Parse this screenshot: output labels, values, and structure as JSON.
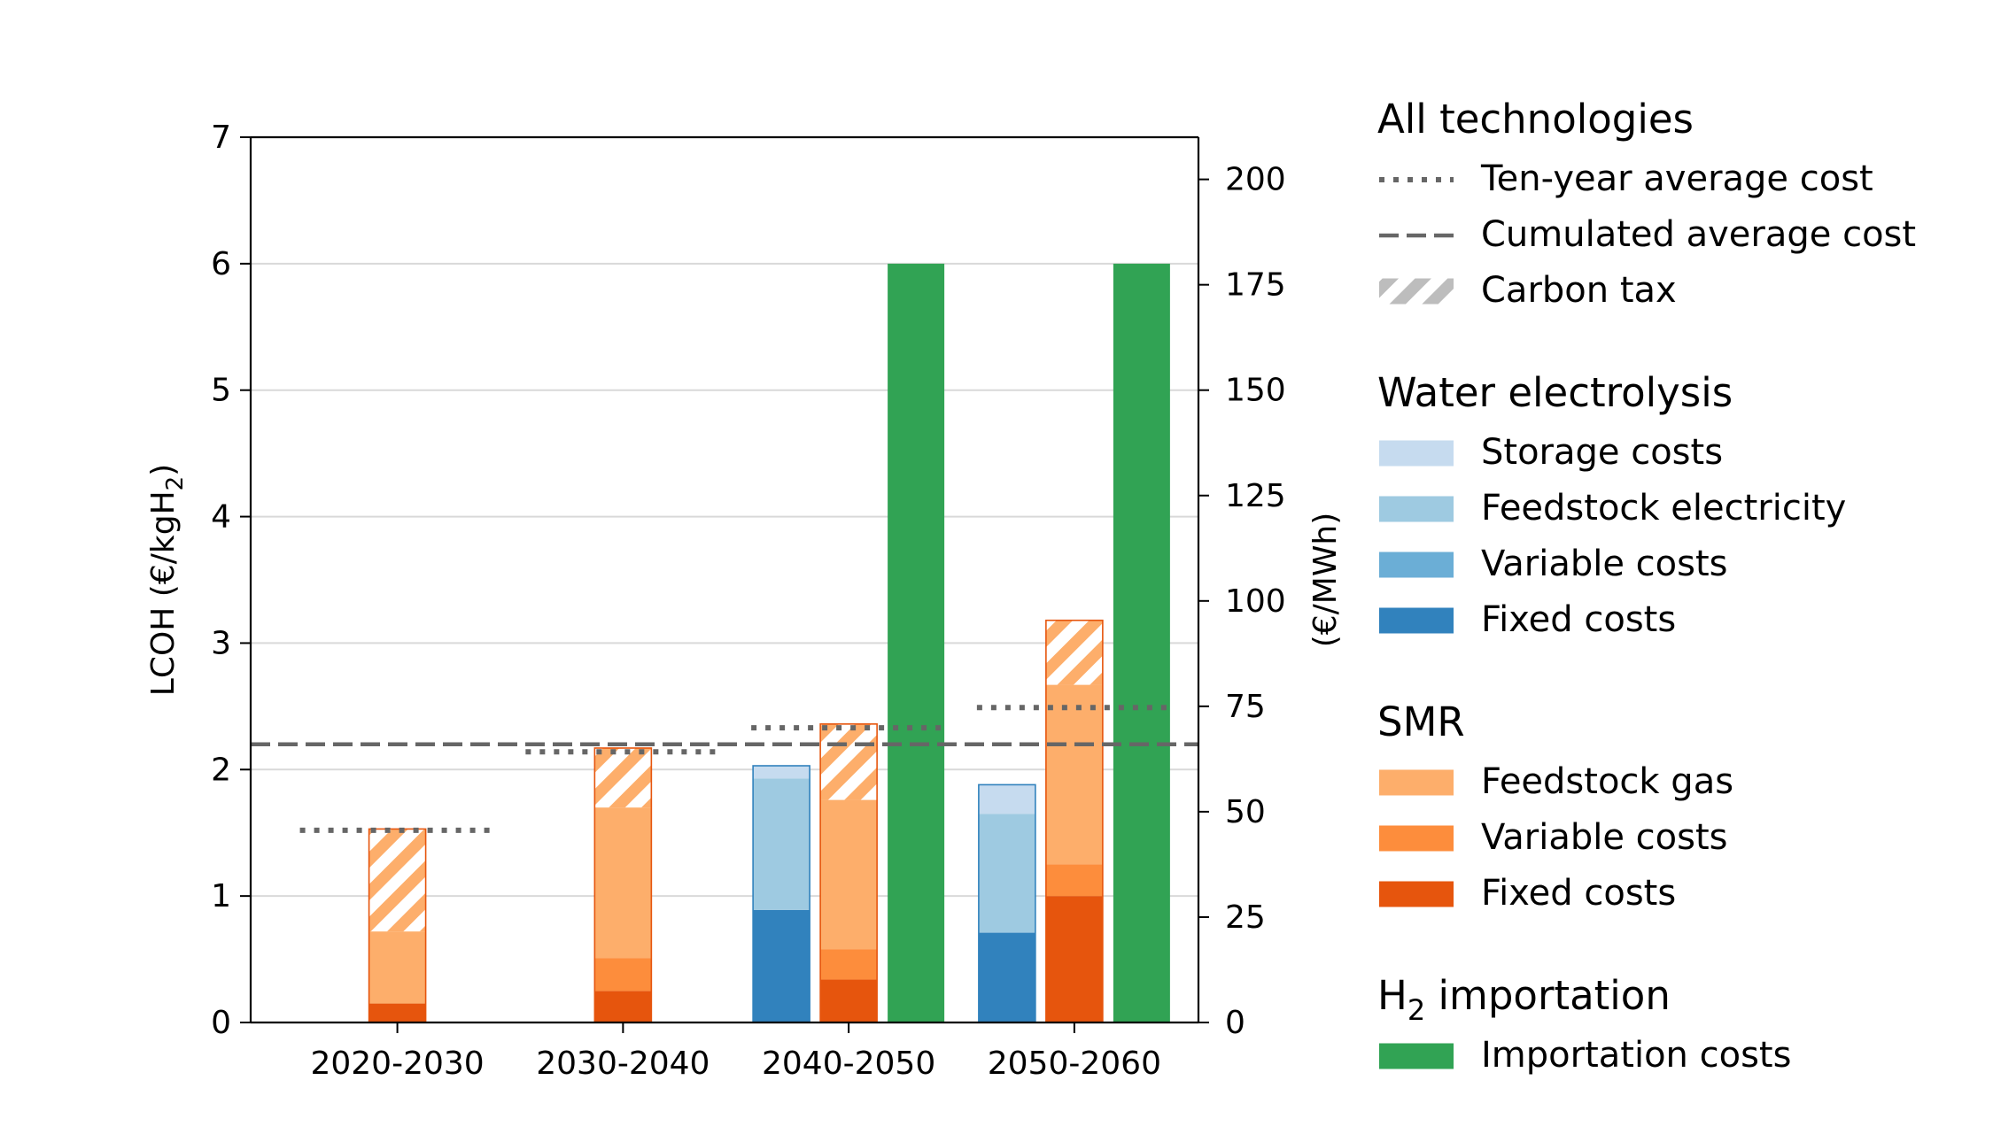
{
  "chart_data": {
    "type": "bar",
    "categories": [
      "2020-2030",
      "2030-2040",
      "2040-2050",
      "2050-2060"
    ],
    "y_left": {
      "label_main": "LCOH (€/kgH",
      "label_sub": "2",
      "label_end": ")",
      "range": [
        0,
        7
      ],
      "ticks": [
        "0",
        "1",
        "2",
        "3",
        "4",
        "5",
        "6",
        "7"
      ]
    },
    "y_right": {
      "label": "(€/MWh)",
      "range": [
        0,
        210
      ],
      "ticks": [
        "0",
        "25",
        "50",
        "75",
        "100",
        "125",
        "150",
        "175",
        "200"
      ]
    },
    "grid": "horizontal",
    "stacks": {
      "electrolysis": [
        null,
        null,
        {
          "fixed": 0.89,
          "variable": 0.0,
          "electricity": 1.04,
          "storage": 0.1
        },
        {
          "fixed": 0.71,
          "variable": 0.0,
          "electricity": 0.94,
          "storage": 0.23
        }
      ],
      "smr": [
        {
          "fixed": 0.15,
          "variable": 0.0,
          "gas": 0.57,
          "carbon_tax": 0.81
        },
        {
          "fixed": 0.25,
          "variable": 0.26,
          "gas": 1.19,
          "carbon_tax": 0.47
        },
        {
          "fixed": 0.34,
          "variable": 0.24,
          "gas": 1.18,
          "carbon_tax": 0.6
        },
        {
          "fixed": 1.0,
          "variable": 0.25,
          "gas": 1.42,
          "carbon_tax": 0.51
        }
      ],
      "importation": [
        null,
        null,
        6.0,
        6.0
      ]
    },
    "ten_year_average_cost": [
      1.52,
      2.14,
      2.33,
      2.49
    ],
    "cumulated_average_cost": 2.2,
    "colors": {
      "elec_storage": "#c6dbef",
      "elec_electricity": "#9ecae1",
      "elec_variable": "#6baed6",
      "elec_fixed": "#3182bd",
      "smr_gas": "#fdae6b",
      "smr_variable": "#fd8d3c",
      "smr_fixed": "#e6550d",
      "importation": "#31a354",
      "average_lines": "#666666",
      "grid": "#d9d9d9"
    },
    "legend": {
      "placement": "right",
      "groups": [
        {
          "title": "All technologies",
          "items": [
            {
              "label": "Ten-year average cost",
              "kind": "dotted"
            },
            {
              "label": "Cumulated average cost",
              "kind": "dashed"
            },
            {
              "label": "Carbon tax",
              "kind": "hatch"
            }
          ]
        },
        {
          "title": "Water electrolysis",
          "items": [
            {
              "label": "Storage costs",
              "color_key": "elec_storage"
            },
            {
              "label": "Feedstock electricity",
              "color_key": "elec_electricity"
            },
            {
              "label": "Variable costs",
              "color_key": "elec_variable"
            },
            {
              "label": "Fixed costs",
              "color_key": "elec_fixed"
            }
          ]
        },
        {
          "title": "SMR",
          "items": [
            {
              "label": "Feedstock gas",
              "color_key": "smr_gas"
            },
            {
              "label": "Variable costs",
              "color_key": "smr_variable"
            },
            {
              "label": "Fixed costs",
              "color_key": "smr_fixed"
            }
          ]
        },
        {
          "title_main": "H",
          "title_sub": "2",
          "title_end": " importation",
          "items": [
            {
              "label": "Importation costs",
              "color_key": "importation"
            }
          ]
        }
      ]
    }
  }
}
